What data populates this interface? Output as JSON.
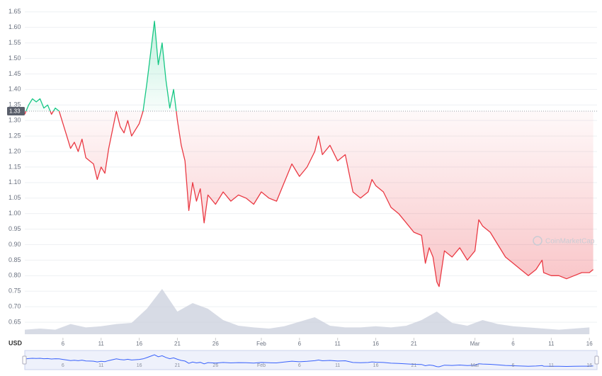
{
  "chart_data": {
    "type": "line",
    "y_axis_label": "USD",
    "watermark": "CoinMarketCap",
    "baseline": {
      "value": 1.33,
      "label": "1.33"
    },
    "up_color": "#16c784",
    "down_color": "#ea3943",
    "grid": true,
    "xlim": [
      0,
      75
    ],
    "ylim": [
      0.6,
      1.67
    ],
    "xticks": [
      {
        "value": 5,
        "label": "6"
      },
      {
        "value": 10,
        "label": "11"
      },
      {
        "value": 15,
        "label": "16"
      },
      {
        "value": 20,
        "label": "21"
      },
      {
        "value": 25,
        "label": "26"
      },
      {
        "value": 31,
        "label": "Feb"
      },
      {
        "value": 36,
        "label": "6"
      },
      {
        "value": 41,
        "label": "11"
      },
      {
        "value": 46,
        "label": "16"
      },
      {
        "value": 51,
        "label": "21"
      },
      {
        "value": 59,
        "label": "Mar"
      },
      {
        "value": 64,
        "label": "6"
      },
      {
        "value": 69,
        "label": "11"
      },
      {
        "value": 74,
        "label": "16"
      }
    ],
    "yticks": [
      0.65,
      {
        "value": 0.7,
        "label": "0.70"
      },
      0.75,
      {
        "value": 0.8,
        "label": "0.80"
      },
      0.85,
      {
        "value": 0.9,
        "label": "0.90"
      },
      0.95,
      {
        "value": 1,
        "label": "1.00"
      },
      1.05,
      {
        "value": 1.1,
        "label": "1.10"
      },
      1.15,
      {
        "value": 1.2,
        "label": "1.20"
      },
      1.25,
      {
        "value": 1.3,
        "label": "1.30"
      },
      1.35,
      {
        "value": 1.4,
        "label": "1.40"
      },
      1.45,
      {
        "value": 1.5,
        "label": "1.50"
      },
      1.55,
      {
        "value": 1.6,
        "label": "1.60"
      },
      1.65
    ],
    "x": [
      0,
      0.5,
      1,
      1.5,
      2,
      2.5,
      3,
      3.5,
      4,
      4.5,
      5,
      5.5,
      6,
      6.5,
      7,
      7.5,
      8,
      8.5,
      9,
      9.5,
      10,
      10.5,
      11,
      11.5,
      12,
      12.5,
      13,
      13.5,
      14,
      14.5,
      15,
      15.5,
      16,
      16.5,
      17,
      17.5,
      18,
      18.5,
      19,
      19.5,
      20,
      20.5,
      21,
      21.5,
      22,
      22.5,
      23,
      23.5,
      24,
      25,
      26,
      27,
      28,
      29,
      30,
      31,
      32,
      33,
      34,
      35,
      36,
      37,
      38,
      38.5,
      39,
      40,
      41,
      42,
      43,
      44,
      45,
      45.5,
      46,
      47,
      48,
      49,
      50,
      51,
      52,
      52.5,
      53,
      53.5,
      54,
      54.3,
      55,
      56,
      57,
      58,
      59,
      59.5,
      60,
      61,
      62,
      63,
      64,
      65,
      66,
      67,
      67.8,
      68,
      69,
      70,
      71,
      72,
      73,
      74,
      74.5
    ],
    "values": [
      1.32,
      1.35,
      1.37,
      1.36,
      1.37,
      1.34,
      1.35,
      1.32,
      1.34,
      1.33,
      1.29,
      1.25,
      1.21,
      1.23,
      1.2,
      1.24,
      1.18,
      1.17,
      1.16,
      1.11,
      1.15,
      1.13,
      1.21,
      1.27,
      1.33,
      1.28,
      1.26,
      1.3,
      1.25,
      1.27,
      1.29,
      1.33,
      1.42,
      1.52,
      1.62,
      1.48,
      1.55,
      1.43,
      1.34,
      1.4,
      1.3,
      1.22,
      1.17,
      1.01,
      1.1,
      1.04,
      1.08,
      0.97,
      1.06,
      1.03,
      1.07,
      1.04,
      1.06,
      1.05,
      1.03,
      1.07,
      1.05,
      1.04,
      1.1,
      1.16,
      1.12,
      1.15,
      1.2,
      1.25,
      1.19,
      1.22,
      1.17,
      1.19,
      1.07,
      1.05,
      1.07,
      1.11,
      1.09,
      1.07,
      1.02,
      1,
      0.97,
      0.94,
      0.93,
      0.84,
      0.89,
      0.86,
      0.78,
      0.765,
      0.88,
      0.86,
      0.89,
      0.85,
      0.88,
      0.98,
      0.96,
      0.94,
      0.9,
      0.86,
      0.84,
      0.82,
      0.8,
      0.82,
      0.85,
      0.81,
      0.8,
      0.8,
      0.79,
      0.8,
      0.81,
      0.81,
      0.82
    ],
    "volume": {
      "color": "#c9cfdc",
      "x": [
        0,
        2,
        4,
        6,
        8,
        10,
        12,
        14,
        16,
        18,
        20,
        22,
        24,
        26,
        28,
        30,
        32,
        34,
        36,
        38,
        40,
        42,
        44,
        46,
        48,
        50,
        52,
        54,
        56,
        58,
        60,
        62,
        64,
        66,
        68,
        70,
        72,
        74
      ],
      "values": [
        8,
        10,
        8,
        18,
        12,
        14,
        18,
        20,
        45,
        80,
        40,
        55,
        45,
        25,
        15,
        12,
        10,
        14,
        22,
        30,
        15,
        12,
        12,
        14,
        12,
        15,
        25,
        40,
        20,
        15,
        25,
        18,
        14,
        12,
        10,
        8,
        10,
        12
      ]
    },
    "navigator_color": "#3861fb"
  }
}
